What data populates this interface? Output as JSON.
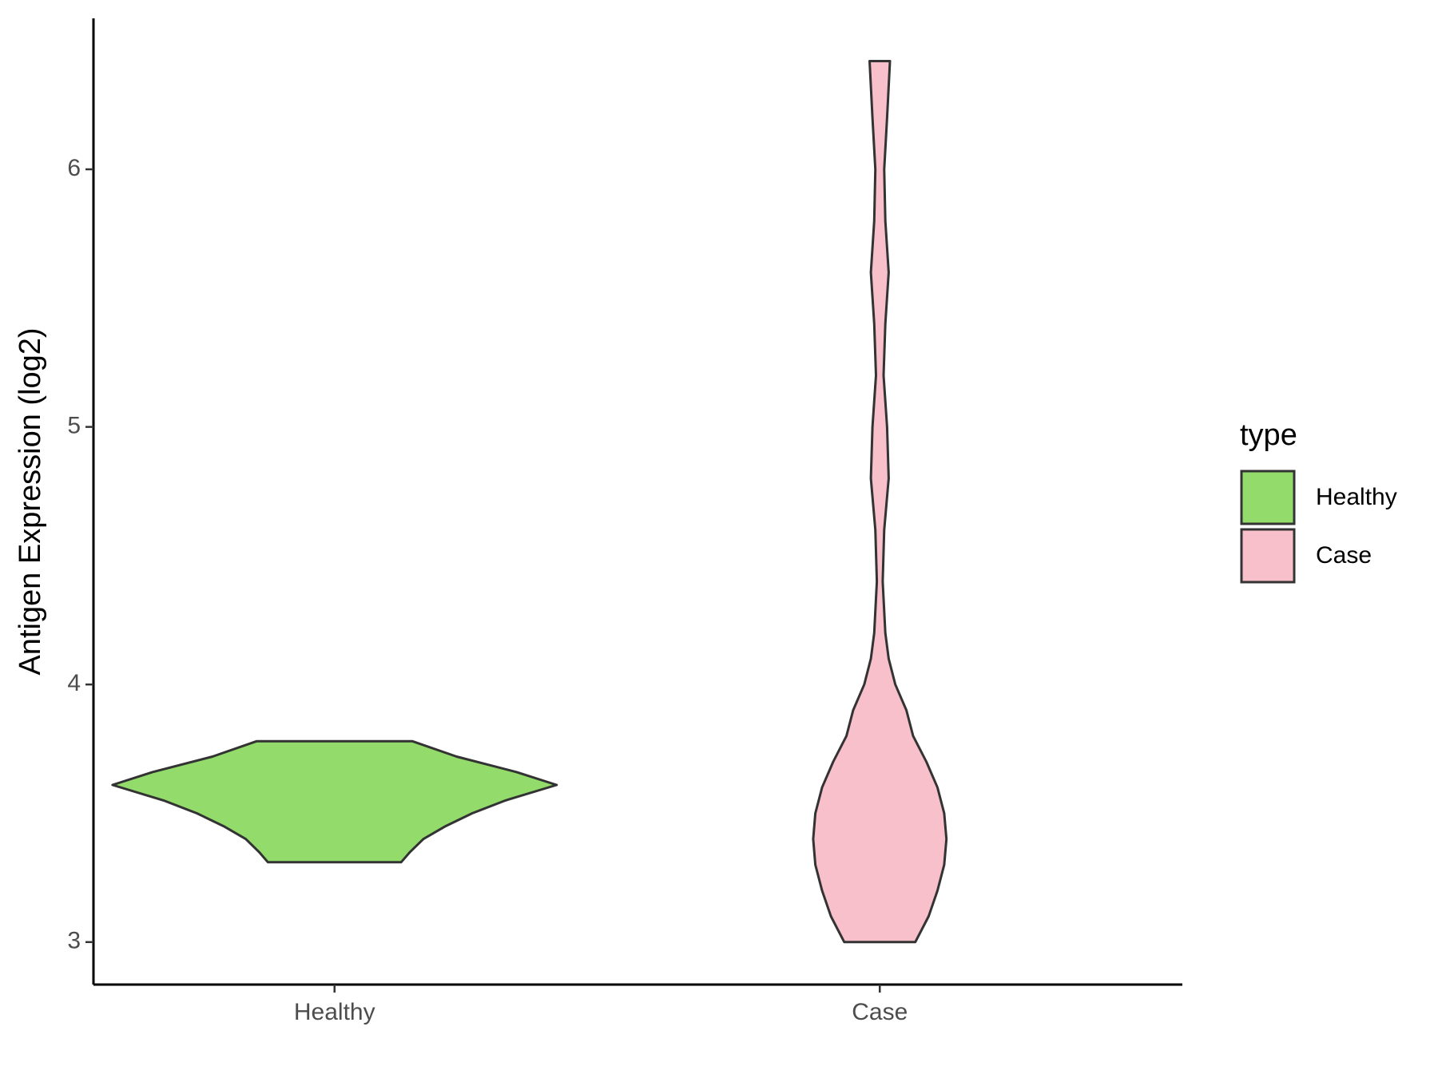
{
  "chart_data": {
    "type": "violin",
    "y_label": "Antigen Expression (log2)",
    "categories": [
      "Healthy",
      "Case"
    ],
    "series": [
      {
        "name": "Healthy",
        "color": "#93dc6b",
        "values": [
          3.31,
          3.35,
          3.4,
          3.45,
          3.5,
          3.55,
          3.61,
          3.66,
          3.72,
          3.78
        ],
        "widths": [
          0.3,
          0.34,
          0.4,
          0.5,
          0.62,
          0.77,
          1.0,
          0.82,
          0.55,
          0.35
        ]
      },
      {
        "name": "Case",
        "color": "#f8c0cb",
        "values": [
          3.0,
          3.1,
          3.2,
          3.3,
          3.4,
          3.5,
          3.6,
          3.7,
          3.8,
          3.9,
          4.0,
          4.1,
          4.2,
          4.4,
          4.6,
          4.8,
          5.0,
          5.2,
          5.4,
          5.6,
          5.8,
          6.0,
          6.2,
          6.42
        ],
        "widths": [
          0.16,
          0.22,
          0.26,
          0.29,
          0.3,
          0.29,
          0.26,
          0.21,
          0.15,
          0.12,
          0.07,
          0.04,
          0.025,
          0.013,
          0.02,
          0.04,
          0.033,
          0.017,
          0.025,
          0.04,
          0.025,
          0.02,
          0.033,
          0.046
        ]
      }
    ],
    "ylim": [
      2.835,
      6.586
    ],
    "yticks": [
      3,
      4,
      5,
      6
    ],
    "grid": false,
    "legend_title": "type",
    "legend": "right"
  }
}
